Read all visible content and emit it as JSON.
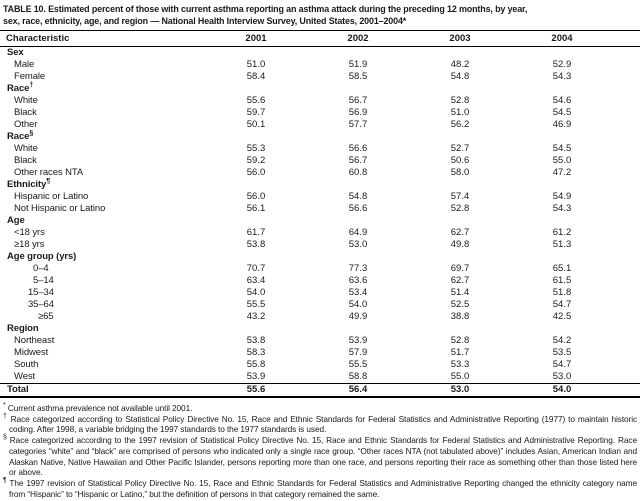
{
  "title": {
    "line1": "TABLE 10. Estimated percent of those with current asthma reporting an asthma attack during the preceding 12 months, by year,",
    "line2": "sex, race, ethnicity, age, and region — National Health Interview Survey, United States, 2001–2004*"
  },
  "table": {
    "columns": [
      "Characteristic",
      "2001",
      "2002",
      "2003",
      "2004"
    ],
    "rows": [
      {
        "label": "Sex",
        "type": "section",
        "values": []
      },
      {
        "label": "Male",
        "type": "item",
        "indent": 1,
        "values": [
          "51.0",
          "51.9",
          "48.2",
          "52.9"
        ]
      },
      {
        "label": "Female",
        "type": "item",
        "indent": 1,
        "values": [
          "58.4",
          "58.5",
          "54.8",
          "54.3"
        ]
      },
      {
        "label": "Race",
        "sup": "†",
        "type": "section",
        "values": []
      },
      {
        "label": "White",
        "type": "item",
        "indent": 1,
        "values": [
          "55.6",
          "56.7",
          "52.8",
          "54.6"
        ]
      },
      {
        "label": "Black",
        "type": "item",
        "indent": 1,
        "values": [
          "59.7",
          "56.9",
          "51.0",
          "54.5"
        ]
      },
      {
        "label": "Other",
        "type": "item",
        "indent": 1,
        "values": [
          "50.1",
          "57.7",
          "56.2",
          "46.9"
        ]
      },
      {
        "label": "Race",
        "sup": "§",
        "type": "section",
        "values": []
      },
      {
        "label": "White",
        "type": "item",
        "indent": 1,
        "values": [
          "55.3",
          "56.6",
          "52.7",
          "54.5"
        ]
      },
      {
        "label": "Black",
        "type": "item",
        "indent": 1,
        "values": [
          "59.2",
          "56.7",
          "50.6",
          "55.0"
        ]
      },
      {
        "label": "Other races NTA",
        "type": "item",
        "indent": 1,
        "values": [
          "56.0",
          "60.8",
          "58.0",
          "47.2"
        ]
      },
      {
        "label": "Ethnicity",
        "sup": "¶",
        "type": "section",
        "values": []
      },
      {
        "label": "Hispanic or Latino",
        "type": "item",
        "indent": 1,
        "values": [
          "56.0",
          "54.8",
          "57.4",
          "54.9"
        ]
      },
      {
        "label": "Not Hispanic or Latino",
        "type": "item",
        "indent": 1,
        "values": [
          "56.1",
          "56.6",
          "52.8",
          "54.3"
        ]
      },
      {
        "label": "Age",
        "type": "section",
        "values": []
      },
      {
        "label": "<18 yrs",
        "type": "item",
        "indent": 1,
        "values": [
          "61.7",
          "64.9",
          "62.7",
          "61.2"
        ]
      },
      {
        "label": "≥18 yrs",
        "type": "item",
        "indent": 1,
        "values": [
          "53.8",
          "53.0",
          "49.8",
          "51.3"
        ]
      },
      {
        "label": "Age group (yrs)",
        "type": "section",
        "values": []
      },
      {
        "label": "0–4",
        "type": "item",
        "indent": 3,
        "values": [
          "70.7",
          "77.3",
          "69.7",
          "65.1"
        ]
      },
      {
        "label": "5–14",
        "type": "item",
        "indent": 3,
        "values": [
          "63.4",
          "63.6",
          "62.7",
          "61.5"
        ]
      },
      {
        "label": "15–34",
        "type": "item",
        "indent": 2,
        "values": [
          "54.0",
          "53.4",
          "51.4",
          "51.8"
        ]
      },
      {
        "label": "35–64",
        "type": "item",
        "indent": 2,
        "values": [
          "55.5",
          "54.0",
          "52.5",
          "54.7"
        ]
      },
      {
        "label": "≥65",
        "type": "item",
        "indent": 4,
        "values": [
          "43.2",
          "49.9",
          "38.8",
          "42.5"
        ]
      },
      {
        "label": "Region",
        "type": "section",
        "values": []
      },
      {
        "label": "Northeast",
        "type": "item",
        "indent": 1,
        "values": [
          "53.8",
          "53.9",
          "52.8",
          "54.2"
        ]
      },
      {
        "label": "Midwest",
        "type": "item",
        "indent": 1,
        "values": [
          "58.3",
          "57.9",
          "51.7",
          "53.5"
        ]
      },
      {
        "label": "South",
        "type": "item",
        "indent": 1,
        "values": [
          "55.8",
          "55.5",
          "53.3",
          "54.7"
        ]
      },
      {
        "label": "West",
        "type": "item",
        "indent": 1,
        "values": [
          "53.9",
          "58.8",
          "55.0",
          "53.0"
        ]
      },
      {
        "label": "Total",
        "type": "total",
        "values": [
          "55.6",
          "56.4",
          "53.0",
          "54.0"
        ]
      }
    ]
  },
  "footnotes": [
    {
      "marker": "*",
      "text": "Current asthma prevalence not available until 2001."
    },
    {
      "marker": "†",
      "text": "Race categorized according to Statistical Policy Directive No. 15, Race and Ethnic Standards for Federal Statistics and Administrative Reporting (1977) to maintain historic coding. After 1998, a variable bridging the 1997 standards to the 1977 standards is used."
    },
    {
      "marker": "§",
      "text": "Race categorized according to the 1997 revision of Statistical Policy Directive No. 15, Race and Ethnic Standards for Federal Statistics and Administrative Reporting. Race categories “white” and “black” are comprised of persons who indicated only a single race group. “Other races NTA (not tabulated above)” includes Asian, American Indian and Alaskan Native, Native Hawaiian and Other Pacific Islander, persons reporting more than one race, and persons reporting their race as something other than those listed here or above."
    },
    {
      "marker": "¶",
      "text": "The 1997 revision of Statistical Policy Directive No. 15, Race and Ethnic Standards for Federal Statistics and Administrative Reporting changed the ethnicity category name from “Hispanic” to “Hispanic or Latino,” but the definition of persons in that category remained the same."
    }
  ],
  "colors": {
    "background": "#ffffff",
    "text": "#1a1a1a",
    "rule": "#000000"
  }
}
